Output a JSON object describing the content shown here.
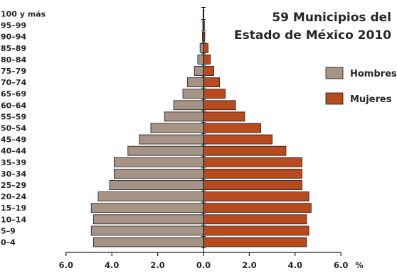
{
  "chart_data": {
    "type": "bar",
    "orientation": "horizontal-pyramid",
    "title_lines": [
      "59 Municipios del",
      "Estado de México 2010"
    ],
    "categories": [
      "0–4",
      "5–9",
      "10–14",
      "15–19",
      "20–24",
      "25–29",
      "30–34",
      "35–39",
      "40–44",
      "45–49",
      "50–54",
      "55–59",
      "60–64",
      "65–69",
      "70–74",
      "75–79",
      "80–84",
      "85–89",
      "90–94",
      "95–99",
      "100 y más"
    ],
    "series": [
      {
        "name": "Hombres",
        "color": "#a69386",
        "values": [
          4.8,
          4.9,
          4.8,
          4.9,
          4.6,
          4.1,
          3.9,
          3.9,
          3.3,
          2.8,
          2.3,
          1.7,
          1.3,
          0.9,
          0.7,
          0.4,
          0.25,
          0.15,
          0.05,
          0.03,
          0.02
        ]
      },
      {
        "name": "Mujeres",
        "color": "#b84a1f",
        "values": [
          4.5,
          4.6,
          4.5,
          4.7,
          4.6,
          4.3,
          4.3,
          4.3,
          3.6,
          3.0,
          2.5,
          1.8,
          1.4,
          0.95,
          0.7,
          0.45,
          0.3,
          0.2,
          0.06,
          0.04,
          0.02
        ]
      }
    ],
    "x_ticks": [
      "6.0",
      "4.0",
      "2.0",
      "0.0",
      "2.0",
      "4.0",
      "6.0"
    ],
    "x_unit": "%",
    "xlim": [
      -6,
      6
    ],
    "legend_position": "right",
    "grid": false
  }
}
